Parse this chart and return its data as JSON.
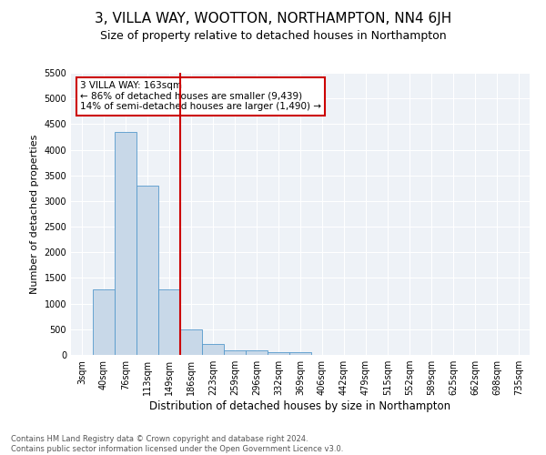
{
  "title": "3, VILLA WAY, WOOTTON, NORTHAMPTON, NN4 6JH",
  "subtitle": "Size of property relative to detached houses in Northampton",
  "xlabel": "Distribution of detached houses by size in Northampton",
  "ylabel": "Number of detached properties",
  "footer": "Contains HM Land Registry data © Crown copyright and database right 2024.\nContains public sector information licensed under the Open Government Licence v3.0.",
  "bar_labels": [
    "3sqm",
    "40sqm",
    "76sqm",
    "113sqm",
    "149sqm",
    "186sqm",
    "223sqm",
    "259sqm",
    "296sqm",
    "332sqm",
    "369sqm",
    "406sqm",
    "442sqm",
    "479sqm",
    "515sqm",
    "552sqm",
    "589sqm",
    "625sqm",
    "662sqm",
    "698sqm",
    "735sqm"
  ],
  "bar_values": [
    0,
    1270,
    4350,
    3300,
    1270,
    490,
    215,
    95,
    80,
    50,
    50,
    0,
    0,
    0,
    0,
    0,
    0,
    0,
    0,
    0,
    0
  ],
  "bar_color": "#c8d8e8",
  "bar_edgecolor": "#5599cc",
  "vline_x": 4.5,
  "vline_color": "#cc0000",
  "annotation_title": "3 VILLA WAY: 163sqm",
  "annotation_line1": "← 86% of detached houses are smaller (9,439)",
  "annotation_line2": "14% of semi-detached houses are larger (1,490) →",
  "annotation_box_color": "#cc0000",
  "ylim": [
    0,
    5500
  ],
  "yticks": [
    0,
    500,
    1000,
    1500,
    2000,
    2500,
    3000,
    3500,
    4000,
    4500,
    5000,
    5500
  ],
  "background_color": "#eef2f7",
  "title_fontsize": 11,
  "subtitle_fontsize": 9,
  "ylabel_fontsize": 8,
  "xlabel_fontsize": 8.5,
  "tick_fontsize": 7,
  "footer_fontsize": 6,
  "annot_fontsize": 7.5
}
